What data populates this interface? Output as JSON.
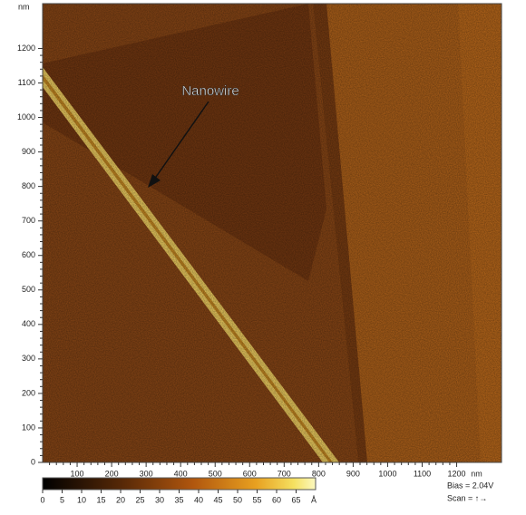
{
  "chart_data": {
    "type": "image",
    "x_unit": "nm",
    "y_unit": "nm",
    "xlim": [
      0,
      1330
    ],
    "ylim": [
      0,
      1330
    ],
    "xticks": [
      100,
      200,
      300,
      400,
      500,
      600,
      700,
      800,
      900,
      1000,
      1100,
      1200
    ],
    "yticks": [
      0,
      100,
      200,
      300,
      400,
      500,
      600,
      700,
      800,
      900,
      1000,
      1100,
      1200
    ],
    "annotation": "Nanowire",
    "colorbar": {
      "lim": [
        0,
        70
      ],
      "ticks": [
        0,
        5,
        10,
        15,
        20,
        25,
        30,
        35,
        40,
        45,
        50,
        55,
        60,
        65
      ],
      "unit": "Å"
    },
    "bias": "Bias = 2.04V",
    "scan": "Scan = ↑→"
  }
}
